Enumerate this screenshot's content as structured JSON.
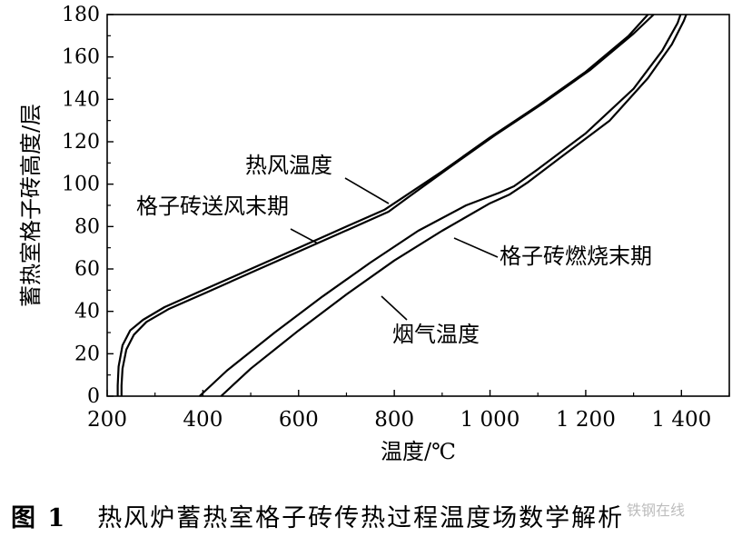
{
  "chart_data": {
    "type": "line",
    "title": "",
    "xlabel": "温度/℃",
    "ylabel": "蓄热室格子砖高度/层",
    "xlim": [
      200,
      1500
    ],
    "ylim": [
      0,
      180
    ],
    "x_ticks": [
      200,
      400,
      600,
      800,
      1000,
      1200,
      1400
    ],
    "x_tick_labels": [
      "200",
      "400",
      "600",
      "800",
      "1 000",
      "1 200",
      "1 400"
    ],
    "y_ticks": [
      0,
      20,
      40,
      60,
      80,
      100,
      120,
      140,
      160,
      180
    ],
    "y_tick_labels": [
      "0",
      "20",
      "40",
      "60",
      "80",
      "100",
      "120",
      "140",
      "160",
      "180"
    ],
    "grid": false,
    "series": [
      {
        "name": "格子砖送风末期",
        "curve": "a",
        "points": [
          [
            222,
            0
          ],
          [
            222,
            5
          ],
          [
            224,
            14
          ],
          [
            232,
            24
          ],
          [
            248,
            31
          ],
          [
            275,
            36
          ],
          [
            320,
            42
          ],
          [
            400,
            50
          ],
          [
            500,
            60
          ],
          [
            600,
            70
          ],
          [
            700,
            80
          ],
          [
            780,
            88
          ],
          [
            820,
            94
          ],
          [
            900,
            106
          ],
          [
            1000,
            122
          ],
          [
            1100,
            137
          ],
          [
            1200,
            153
          ],
          [
            1290,
            170
          ],
          [
            1330,
            180
          ]
        ]
      },
      {
        "name": "热风温度",
        "curve": "a",
        "points": [
          [
            230,
            0
          ],
          [
            230,
            5
          ],
          [
            232,
            13
          ],
          [
            240,
            22
          ],
          [
            256,
            29
          ],
          [
            282,
            35
          ],
          [
            328,
            41
          ],
          [
            408,
            49
          ],
          [
            508,
            59
          ],
          [
            608,
            69
          ],
          [
            708,
            79
          ],
          [
            788,
            87
          ],
          [
            830,
            94
          ],
          [
            910,
            107
          ],
          [
            1010,
            123
          ],
          [
            1110,
            138
          ],
          [
            1210,
            154
          ],
          [
            1300,
            171
          ],
          [
            1342,
            180
          ]
        ]
      },
      {
        "name": "烟气温度",
        "curve": "b",
        "points": [
          [
            393,
            0
          ],
          [
            450,
            12
          ],
          [
            550,
            30
          ],
          [
            650,
            47
          ],
          [
            750,
            63
          ],
          [
            850,
            78
          ],
          [
            950,
            90
          ],
          [
            1020,
            96
          ],
          [
            1050,
            99
          ],
          [
            1100,
            107
          ],
          [
            1200,
            124
          ],
          [
            1300,
            145
          ],
          [
            1360,
            163
          ],
          [
            1392,
            176
          ],
          [
            1398,
            180
          ]
        ]
      },
      {
        "name": "格子砖燃烧末期",
        "curve": "b",
        "points": [
          [
            438,
            0
          ],
          [
            500,
            13
          ],
          [
            600,
            31
          ],
          [
            700,
            48
          ],
          [
            800,
            64
          ],
          [
            900,
            78
          ],
          [
            1000,
            91
          ],
          [
            1040,
            95
          ],
          [
            1080,
            101
          ],
          [
            1150,
            113
          ],
          [
            1250,
            130
          ],
          [
            1330,
            150
          ],
          [
            1380,
            166
          ],
          [
            1405,
            177
          ],
          [
            1410,
            180
          ]
        ]
      }
    ],
    "annotations": [
      {
        "text": "热风温度",
        "target": "热风温度"
      },
      {
        "text": "格子砖送风末期",
        "target": "格子砖送风末期"
      },
      {
        "text": "格子砖燃烧末期",
        "target": "格子砖燃烧末期"
      },
      {
        "text": "烟气温度",
        "target": "烟气温度"
      }
    ]
  },
  "caption": {
    "figure_number": "图 1",
    "text": "热风炉蓄热室格子砖传热过程温度场数学解析"
  },
  "watermark": "铁钢在线"
}
